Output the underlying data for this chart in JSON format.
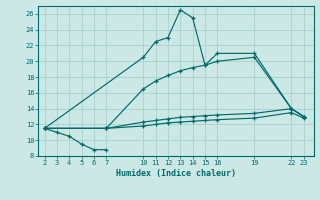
{
  "xlabel": "Humidex (Indice chaleur)",
  "bg_color": "#cce8e5",
  "grid_color": "#aad0cc",
  "line_color": "#006b6b",
  "x_ticks": [
    2,
    3,
    4,
    5,
    6,
    7,
    10,
    11,
    12,
    13,
    14,
    15,
    16,
    19,
    22,
    23
  ],
  "ylim": [
    8,
    27
  ],
  "xlim": [
    1.5,
    23.8
  ],
  "yticks": [
    8,
    10,
    12,
    14,
    16,
    18,
    20,
    22,
    24,
    26
  ],
  "lines": [
    {
      "x": [
        2,
        3,
        4,
        5,
        6,
        7
      ],
      "y": [
        11.5,
        11.0,
        10.5,
        9.5,
        8.8,
        8.8
      ]
    },
    {
      "x": [
        2,
        10,
        11,
        12,
        13,
        14,
        15,
        16,
        19,
        22,
        23
      ],
      "y": [
        11.5,
        20.5,
        22.5,
        23.0,
        26.5,
        25.5,
        19.5,
        21.0,
        21.0,
        14.0,
        13.0
      ]
    },
    {
      "x": [
        2,
        7,
        10,
        11,
        12,
        13,
        14,
        15,
        16,
        19,
        22,
        23
      ],
      "y": [
        11.5,
        11.5,
        16.5,
        17.5,
        18.2,
        18.8,
        19.2,
        19.5,
        20.0,
        20.5,
        14.0,
        13.0
      ]
    },
    {
      "x": [
        2,
        7,
        10,
        11,
        12,
        13,
        14,
        15,
        16,
        19,
        22,
        23
      ],
      "y": [
        11.5,
        11.5,
        12.3,
        12.5,
        12.7,
        12.9,
        13.0,
        13.1,
        13.2,
        13.4,
        14.0,
        13.0
      ]
    },
    {
      "x": [
        2,
        7,
        10,
        11,
        12,
        13,
        14,
        15,
        16,
        19,
        22,
        23
      ],
      "y": [
        11.5,
        11.5,
        11.8,
        12.0,
        12.2,
        12.3,
        12.4,
        12.5,
        12.6,
        12.8,
        13.5,
        12.8
      ]
    }
  ]
}
